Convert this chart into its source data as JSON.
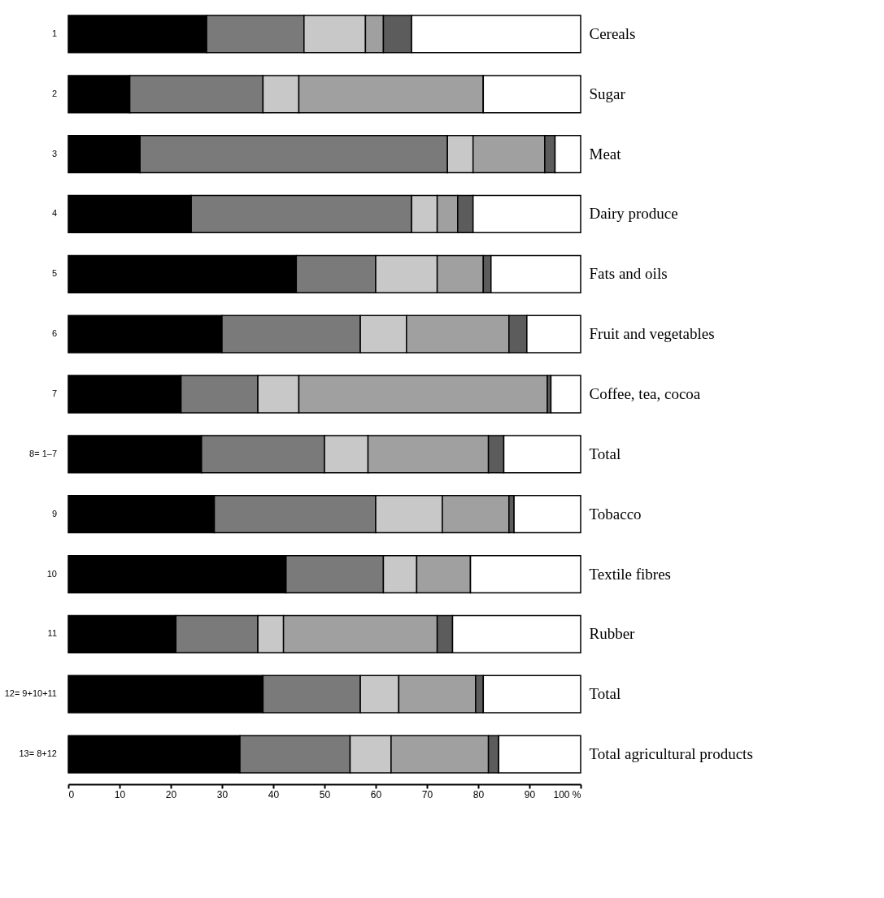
{
  "chart_data": {
    "type": "bar",
    "orientation": "horizontal",
    "stacked": true,
    "categories": [
      "Cereals",
      "Sugar",
      "Meat",
      "Dairy produce",
      "Fats and oils",
      "Fruit and vegetables",
      "Coffee, tea, cocoa",
      "Total",
      "Tobacco",
      "Textile fibres",
      "Rubber",
      "Total",
      "Total agricultural products"
    ],
    "series": [
      {
        "color": "#000000",
        "values": [
          27,
          12,
          14,
          24,
          44.5,
          30,
          22,
          26,
          28.5,
          42.5,
          21,
          38,
          33.5
        ]
      },
      {
        "color": "#7a7a7a",
        "values": [
          19,
          26,
          60,
          43,
          15.5,
          27,
          15,
          24,
          31.5,
          19,
          16,
          19,
          21.5
        ]
      },
      {
        "color": "#c8c8c8",
        "values": [
          12,
          7,
          5,
          5,
          12,
          9,
          8,
          8.5,
          13,
          6.5,
          5,
          7.5,
          8
        ]
      },
      {
        "color": "#a0a0a0",
        "values": [
          3.5,
          36,
          14,
          4,
          9,
          20,
          48.5,
          23.5,
          13,
          10.5,
          30,
          15,
          19
        ]
      },
      {
        "color": "#5c5c5c",
        "values": [
          5.5,
          0,
          2,
          3,
          1.5,
          3.5,
          0.7,
          3,
          1,
          0,
          3,
          1.5,
          2
        ]
      },
      {
        "color": "#ffffff",
        "values": [
          33,
          19,
          5,
          21,
          17.5,
          10.5,
          5.8,
          15,
          13,
          21.5,
          25,
          19,
          16
        ]
      }
    ],
    "xlim": [
      0,
      100
    ],
    "xticks": [
      0,
      10,
      20,
      30,
      40,
      50,
      60,
      70,
      80,
      90,
      {
        "value": 100,
        "label": "100 %"
      }
    ],
    "annotations": [
      "1",
      "2",
      "3",
      "4",
      "5",
      "6",
      "7",
      "8= 1–7",
      "9",
      "10",
      "11",
      "12= 9+10+11",
      "13= 8+12"
    ],
    "grid": false,
    "legend": false
  }
}
